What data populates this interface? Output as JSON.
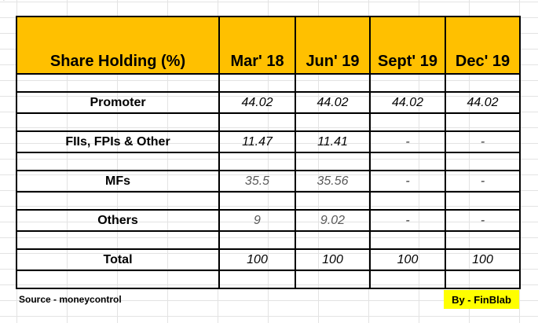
{
  "header": {
    "row_label": "Share Holding (%)",
    "columns": [
      "Mar' 18",
      "Jun' 19",
      "Sept' 19",
      "Dec' 19"
    ]
  },
  "rows": [
    {
      "label": "Promoter",
      "values": [
        "44.02",
        "44.02",
        "44.02",
        "44.02"
      ]
    },
    {
      "label": "FIIs, FPIs & Other",
      "values": [
        "11.47",
        "11.41",
        "-",
        "-"
      ]
    },
    {
      "label": "MFs",
      "values": [
        "35.5",
        "35.56",
        "-",
        "-"
      ]
    },
    {
      "label": "Others",
      "values": [
        "9",
        "9.02",
        "-",
        "-"
      ]
    },
    {
      "label": "Total",
      "values": [
        "100",
        "100",
        "100",
        "100"
      ]
    }
  ],
  "footer": {
    "source": "Source - moneycontrol",
    "credit": "By - FinBlab"
  },
  "colors": {
    "header_bg": "#ffc000",
    "credit_bg": "#ffff00"
  },
  "tick": "`"
}
